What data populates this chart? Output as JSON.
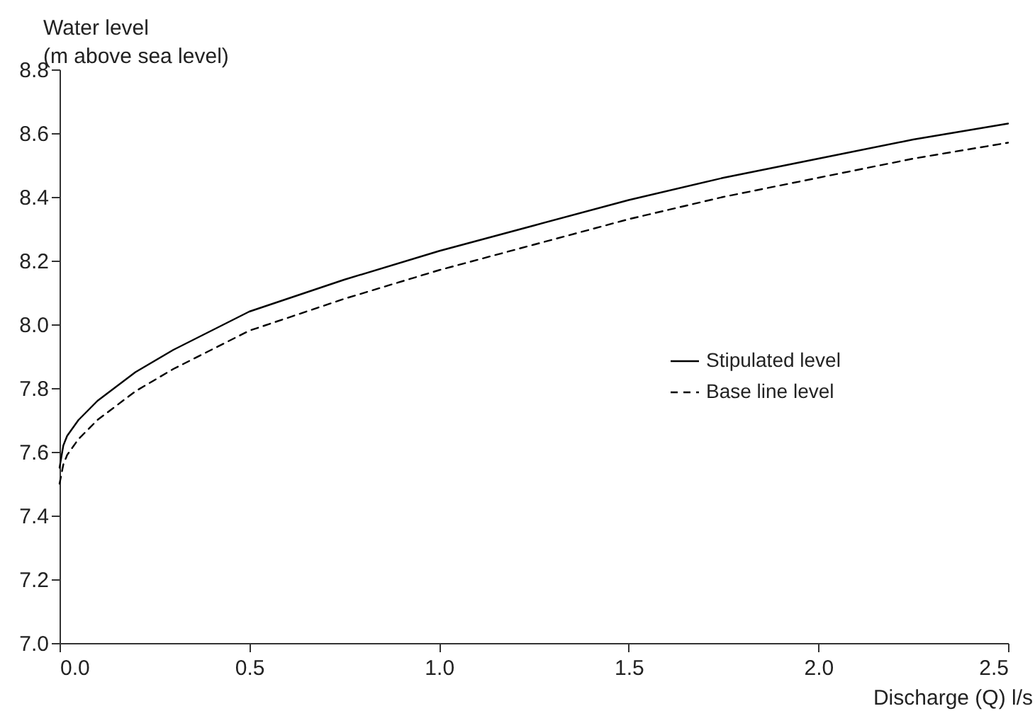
{
  "chart_data": {
    "type": "line",
    "xlabel": "Discharge (Q) l/s",
    "ylabel": "Water level\n(m above sea level)",
    "x": [
      0,
      0.01,
      0.02,
      0.05,
      0.1,
      0.2,
      0.3,
      0.5,
      0.75,
      1,
      1.25,
      1.5,
      1.75,
      2,
      2.25,
      2.5
    ],
    "series": [
      {
        "name": "Stipulated level",
        "color": "#000000",
        "line_style": "solid",
        "values": [
          7.55,
          7.62,
          7.65,
          7.7,
          7.76,
          7.85,
          7.92,
          8.04,
          8.14,
          8.23,
          8.31,
          8.39,
          8.46,
          8.52,
          8.58,
          8.63
        ]
      },
      {
        "name": "Base line level",
        "color": "#000000",
        "line_style": "dashed",
        "values": [
          7.5,
          7.56,
          7.59,
          7.64,
          7.7,
          7.79,
          7.86,
          7.98,
          8.08,
          8.17,
          8.25,
          8.33,
          8.4,
          8.46,
          8.52,
          8.57
        ]
      }
    ],
    "xlim": [
      0,
      2.5
    ],
    "xticks": [
      {
        "value": 0,
        "label": "0.0"
      },
      0.5,
      {
        "value": 1,
        "label": "1.0"
      },
      1.5,
      {
        "value": 2,
        "label": "2.0"
      },
      2.5
    ],
    "ylim": [
      7.0,
      8.8
    ],
    "yticks": [
      {
        "value": 7,
        "label": "7.0"
      },
      7.2,
      7.4,
      7.6,
      7.8,
      {
        "value": 8,
        "label": "8.0"
      },
      8.2,
      8.4,
      8.6,
      8.8
    ],
    "grid": false,
    "legend": "right"
  }
}
